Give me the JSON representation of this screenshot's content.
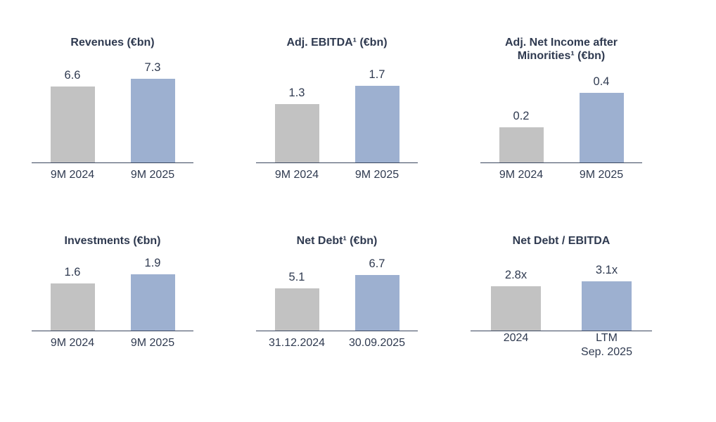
{
  "colors": {
    "bar_previous": "#c2c2c2",
    "bar_current": "#9db0d0",
    "text": "#2f3a50",
    "axis": "#3a465e",
    "background": "#ffffff"
  },
  "chart_data": [
    {
      "id": "revenues",
      "type": "bar",
      "title": "Revenues (€bn)",
      "categories": [
        "9M 2024",
        "9M 2025"
      ],
      "values": [
        6.6,
        7.3
      ],
      "value_labels": [
        "6.6",
        "7.3"
      ],
      "unit": "€bn",
      "ylim": [
        0,
        8.8
      ],
      "grid": false,
      "legend": "none"
    },
    {
      "id": "adj-ebitda",
      "type": "bar",
      "title": "Adj. EBITDA¹ (€bn)",
      "categories": [
        "9M 2024",
        "9M 2025"
      ],
      "values": [
        1.3,
        1.7
      ],
      "value_labels": [
        "1.3",
        "1.7"
      ],
      "unit": "€bn",
      "ylim": [
        0,
        2.25
      ],
      "grid": false,
      "legend": "none"
    },
    {
      "id": "adj-net-income",
      "type": "bar",
      "title": "Adj. Net Income after\nMinorities¹ (€bn)",
      "categories": [
        "9M 2024",
        "9M 2025"
      ],
      "values": [
        0.2,
        0.4
      ],
      "value_labels": [
        "0.2",
        "0.4"
      ],
      "unit": "€bn",
      "ylim": [
        0,
        0.58
      ],
      "grid": false,
      "legend": "none"
    },
    {
      "id": "investments",
      "type": "bar",
      "title": "Investments (€bn)",
      "categories": [
        "9M 2024",
        "9M 2025"
      ],
      "values": [
        1.6,
        1.9
      ],
      "value_labels": [
        "1.6",
        "1.9"
      ],
      "unit": "€bn",
      "ylim": [
        0,
        2.42
      ],
      "grid": false,
      "legend": "none"
    },
    {
      "id": "net-debt",
      "type": "bar",
      "title": "Net Debt¹ (€bn)",
      "categories": [
        "31.12.2024",
        "30.09.2025"
      ],
      "values": [
        5.1,
        6.7
      ],
      "value_labels": [
        "5.1",
        "6.7"
      ],
      "unit": "€bn",
      "ylim": [
        0,
        8.65
      ],
      "grid": false,
      "legend": "none"
    },
    {
      "id": "net-debt-ebitda",
      "type": "bar",
      "title": "Net Debt / EBITDA",
      "categories": [
        "2024",
        "LTM\nSep. 2025"
      ],
      "values": [
        2.8,
        3.1
      ],
      "value_labels": [
        "2.8x",
        "3.1x"
      ],
      "unit": "x",
      "ylim": [
        0,
        4.5
      ],
      "grid": false,
      "legend": "none"
    }
  ]
}
